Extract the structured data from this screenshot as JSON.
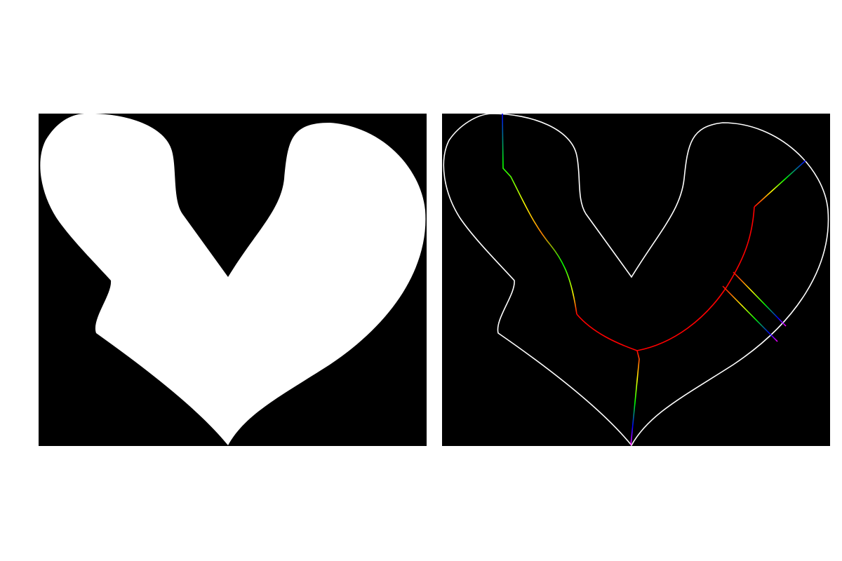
{
  "figure": {
    "background": "#ffffff",
    "panels": [
      {
        "name": "binary-shape",
        "description_kind": "filled mask",
        "background_color": "#000000",
        "shape_color": "#ffffff"
      },
      {
        "name": "skeleton-overlay",
        "description_kind": "outline with medial axis",
        "background_color": "#000000",
        "outline_color": "#ffffff",
        "branch_colormap": [
          "#ff0000",
          "#ff8000",
          "#ffff00",
          "#00ff00",
          "#00ffff",
          "#0000ff",
          "#ff00ff"
        ]
      }
    ]
  }
}
